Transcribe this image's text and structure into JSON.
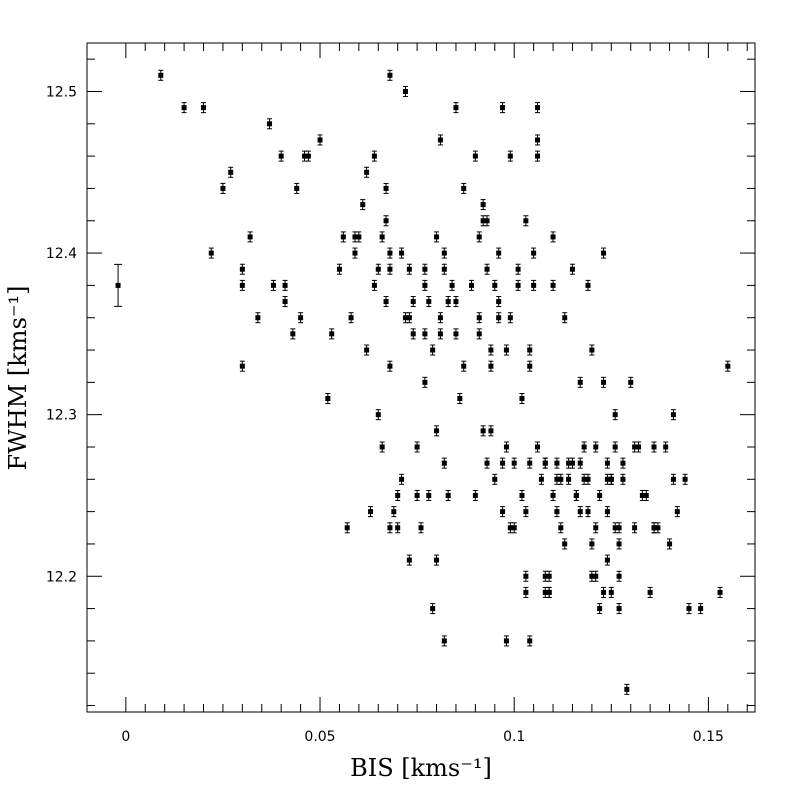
{
  "chart_data": {
    "type": "scatter",
    "xlabel": "BIS [kms⁻¹]",
    "ylabel": "FWHM [kms⁻¹]",
    "xlim": [
      -0.01,
      0.162
    ],
    "ylim": [
      12.116,
      12.53
    ],
    "grid": false,
    "x_ticks": [
      0,
      0.05,
      0.1,
      0.15
    ],
    "x_tick_labels": [
      "0",
      "0.05",
      "0.1",
      "0.15"
    ],
    "y_ticks": [
      12.2,
      12.3,
      12.4,
      12.5
    ],
    "y_tick_labels": [
      "12.2",
      "12.3",
      "12.4",
      "12.5"
    ],
    "representative_error": {
      "x": -0.002,
      "y": 12.38,
      "yerr": 0.013
    },
    "series": [
      {
        "color": "#000000",
        "points": [
          [
            0.009,
            12.51
          ],
          [
            0.015,
            12.49
          ],
          [
            0.02,
            12.49
          ],
          [
            0.022,
            12.4
          ],
          [
            0.025,
            12.44
          ],
          [
            0.027,
            12.45
          ],
          [
            0.03,
            12.39
          ],
          [
            0.03,
            12.38
          ],
          [
            0.03,
            12.33
          ],
          [
            0.032,
            12.41
          ],
          [
            0.034,
            12.36
          ],
          [
            0.037,
            12.48
          ],
          [
            0.038,
            12.38
          ],
          [
            0.04,
            12.46
          ],
          [
            0.041,
            12.38
          ],
          [
            0.041,
            12.37
          ],
          [
            0.044,
            12.44
          ],
          [
            0.043,
            12.35
          ],
          [
            0.045,
            12.36
          ],
          [
            0.046,
            12.46
          ],
          [
            0.047,
            12.46
          ],
          [
            0.05,
            12.47
          ],
          [
            0.052,
            12.31
          ],
          [
            0.053,
            12.35
          ],
          [
            0.055,
            12.39
          ],
          [
            0.056,
            12.41
          ],
          [
            0.057,
            12.23
          ],
          [
            0.058,
            12.36
          ],
          [
            0.059,
            12.41
          ],
          [
            0.059,
            12.4
          ],
          [
            0.06,
            12.41
          ],
          [
            0.061,
            12.43
          ],
          [
            0.062,
            12.45
          ],
          [
            0.062,
            12.34
          ],
          [
            0.063,
            12.24
          ],
          [
            0.064,
            12.46
          ],
          [
            0.064,
            12.38
          ],
          [
            0.065,
            12.39
          ],
          [
            0.065,
            12.3
          ],
          [
            0.066,
            12.28
          ],
          [
            0.066,
            12.41
          ],
          [
            0.067,
            12.42
          ],
          [
            0.067,
            12.44
          ],
          [
            0.067,
            12.37
          ],
          [
            0.068,
            12.39
          ],
          [
            0.068,
            12.4
          ],
          [
            0.068,
            12.33
          ],
          [
            0.068,
            12.23
          ],
          [
            0.069,
            12.24
          ],
          [
            0.068,
            12.51
          ],
          [
            0.07,
            12.23
          ],
          [
            0.07,
            12.25
          ],
          [
            0.071,
            12.4
          ],
          [
            0.071,
            12.26
          ],
          [
            0.072,
            12.5
          ],
          [
            0.072,
            12.36
          ],
          [
            0.073,
            12.36
          ],
          [
            0.073,
            12.21
          ],
          [
            0.073,
            12.39
          ],
          [
            0.074,
            12.35
          ],
          [
            0.074,
            12.37
          ],
          [
            0.075,
            12.28
          ],
          [
            0.075,
            12.25
          ],
          [
            0.076,
            12.23
          ],
          [
            0.077,
            12.39
          ],
          [
            0.077,
            12.38
          ],
          [
            0.077,
            12.35
          ],
          [
            0.077,
            12.32
          ],
          [
            0.078,
            12.37
          ],
          [
            0.078,
            12.25
          ],
          [
            0.079,
            12.18
          ],
          [
            0.079,
            12.34
          ],
          [
            0.08,
            12.29
          ],
          [
            0.08,
            12.21
          ],
          [
            0.08,
            12.41
          ],
          [
            0.081,
            12.47
          ],
          [
            0.081,
            12.36
          ],
          [
            0.081,
            12.35
          ],
          [
            0.082,
            12.16
          ],
          [
            0.082,
            12.27
          ],
          [
            0.082,
            12.39
          ],
          [
            0.082,
            12.4
          ],
          [
            0.083,
            12.25
          ],
          [
            0.083,
            12.37
          ],
          [
            0.084,
            12.38
          ],
          [
            0.085,
            12.49
          ],
          [
            0.085,
            12.37
          ],
          [
            0.085,
            12.35
          ],
          [
            0.086,
            12.31
          ],
          [
            0.087,
            12.33
          ],
          [
            0.087,
            12.44
          ],
          [
            0.089,
            12.38
          ],
          [
            0.09,
            12.46
          ],
          [
            0.09,
            12.25
          ],
          [
            0.091,
            12.41
          ],
          [
            0.091,
            12.36
          ],
          [
            0.091,
            12.35
          ],
          [
            0.092,
            12.43
          ],
          [
            0.092,
            12.42
          ],
          [
            0.092,
            12.29
          ],
          [
            0.093,
            12.27
          ],
          [
            0.093,
            12.39
          ],
          [
            0.093,
            12.42
          ],
          [
            0.094,
            12.29
          ],
          [
            0.094,
            12.34
          ],
          [
            0.094,
            12.33
          ],
          [
            0.095,
            12.26
          ],
          [
            0.095,
            12.38
          ],
          [
            0.096,
            12.36
          ],
          [
            0.096,
            12.37
          ],
          [
            0.096,
            12.4
          ],
          [
            0.097,
            12.49
          ],
          [
            0.097,
            12.24
          ],
          [
            0.097,
            12.27
          ],
          [
            0.098,
            12.16
          ],
          [
            0.098,
            12.34
          ],
          [
            0.098,
            12.28
          ],
          [
            0.099,
            12.23
          ],
          [
            0.099,
            12.46
          ],
          [
            0.099,
            12.36
          ],
          [
            0.1,
            12.27
          ],
          [
            0.1,
            12.23
          ],
          [
            0.101,
            12.38
          ],
          [
            0.101,
            12.39
          ],
          [
            0.102,
            12.31
          ],
          [
            0.102,
            12.25
          ],
          [
            0.103,
            12.19
          ],
          [
            0.103,
            12.2
          ],
          [
            0.103,
            12.24
          ],
          [
            0.103,
            12.42
          ],
          [
            0.104,
            12.16
          ],
          [
            0.104,
            12.27
          ],
          [
            0.104,
            12.33
          ],
          [
            0.104,
            12.34
          ],
          [
            0.105,
            12.38
          ],
          [
            0.105,
            12.4
          ],
          [
            0.106,
            12.49
          ],
          [
            0.106,
            12.47
          ],
          [
            0.106,
            12.46
          ],
          [
            0.106,
            12.28
          ],
          [
            0.107,
            12.26
          ],
          [
            0.108,
            12.27
          ],
          [
            0.108,
            12.27
          ],
          [
            0.108,
            12.2
          ],
          [
            0.108,
            12.19
          ],
          [
            0.109,
            12.2
          ],
          [
            0.109,
            12.19
          ],
          [
            0.109,
            12.19
          ],
          [
            0.11,
            12.38
          ],
          [
            0.11,
            12.41
          ],
          [
            0.11,
            12.25
          ],
          [
            0.111,
            12.27
          ],
          [
            0.111,
            12.26
          ],
          [
            0.111,
            12.24
          ],
          [
            0.112,
            12.26
          ],
          [
            0.112,
            12.23
          ],
          [
            0.113,
            12.22
          ],
          [
            0.113,
            12.36
          ],
          [
            0.114,
            12.27
          ],
          [
            0.114,
            12.26
          ],
          [
            0.115,
            12.39
          ],
          [
            0.115,
            12.27
          ],
          [
            0.116,
            12.25
          ],
          [
            0.116,
            12.25
          ],
          [
            0.117,
            12.24
          ],
          [
            0.117,
            12.27
          ],
          [
            0.117,
            12.32
          ],
          [
            0.118,
            12.26
          ],
          [
            0.118,
            12.28
          ],
          [
            0.119,
            12.24
          ],
          [
            0.119,
            12.26
          ],
          [
            0.119,
            12.38
          ],
          [
            0.12,
            12.2
          ],
          [
            0.12,
            12.22
          ],
          [
            0.12,
            12.34
          ],
          [
            0.121,
            12.28
          ],
          [
            0.121,
            12.23
          ],
          [
            0.121,
            12.2
          ],
          [
            0.122,
            12.25
          ],
          [
            0.122,
            12.18
          ],
          [
            0.123,
            12.4
          ],
          [
            0.123,
            12.19
          ],
          [
            0.123,
            12.32
          ],
          [
            0.124,
            12.27
          ],
          [
            0.124,
            12.24
          ],
          [
            0.124,
            12.21
          ],
          [
            0.124,
            12.26
          ],
          [
            0.125,
            12.26
          ],
          [
            0.125,
            12.26
          ],
          [
            0.125,
            12.19
          ],
          [
            0.126,
            12.3
          ],
          [
            0.126,
            12.23
          ],
          [
            0.126,
            12.28
          ],
          [
            0.127,
            12.23
          ],
          [
            0.127,
            12.22
          ],
          [
            0.127,
            12.2
          ],
          [
            0.127,
            12.18
          ],
          [
            0.128,
            12.27
          ],
          [
            0.128,
            12.26
          ],
          [
            0.129,
            12.13
          ],
          [
            0.13,
            12.32
          ],
          [
            0.131,
            12.28
          ],
          [
            0.131,
            12.23
          ],
          [
            0.132,
            12.28
          ],
          [
            0.133,
            12.25
          ],
          [
            0.134,
            12.25
          ],
          [
            0.135,
            12.19
          ],
          [
            0.136,
            12.23
          ],
          [
            0.136,
            12.28
          ],
          [
            0.136,
            12.23
          ],
          [
            0.137,
            12.23
          ],
          [
            0.139,
            12.28
          ],
          [
            0.14,
            12.22
          ],
          [
            0.141,
            12.3
          ],
          [
            0.141,
            12.26
          ],
          [
            0.142,
            12.24
          ],
          [
            0.144,
            12.26
          ],
          [
            0.145,
            12.18
          ],
          [
            0.148,
            12.18
          ],
          [
            0.153,
            12.19
          ],
          [
            0.155,
            12.33
          ]
        ]
      }
    ]
  }
}
